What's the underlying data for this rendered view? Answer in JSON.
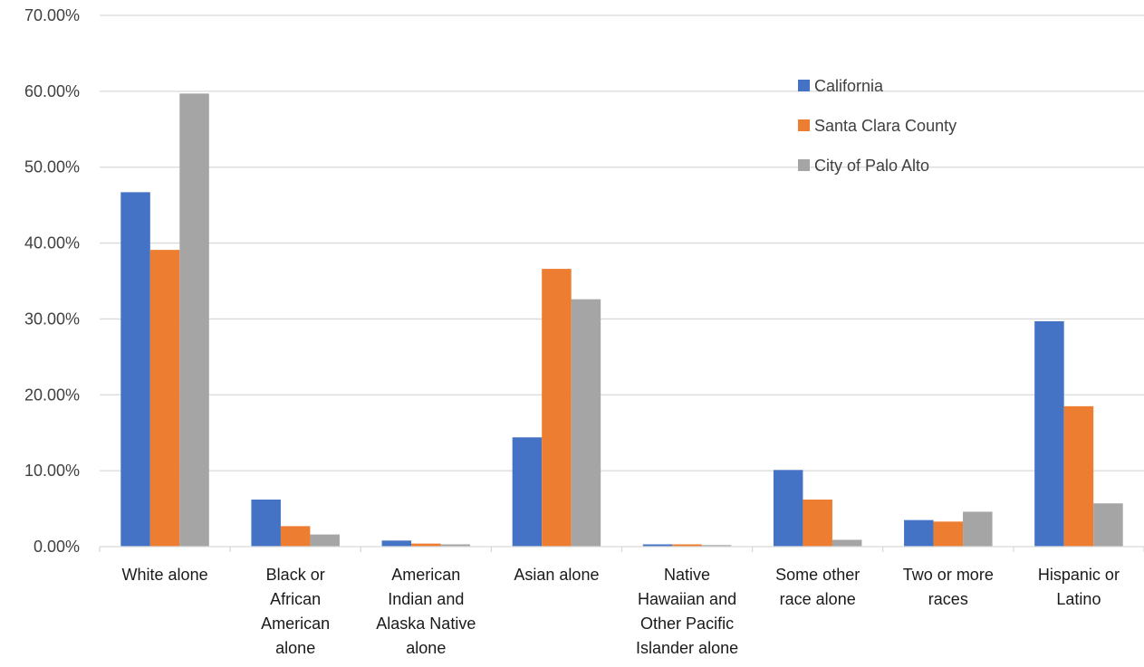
{
  "chart_data": {
    "type": "bar",
    "title": "",
    "xlabel": "",
    "ylabel": "",
    "ylim": [
      0,
      70
    ],
    "y_ticks": [
      "0.00%",
      "10.00%",
      "20.00%",
      "30.00%",
      "40.00%",
      "50.00%",
      "60.00%",
      "70.00%"
    ],
    "grid": true,
    "legend_position": "top-right",
    "categories": [
      [
        "White alone"
      ],
      [
        "Black or",
        "African",
        "American",
        "alone"
      ],
      [
        "American",
        "Indian and",
        "Alaska Native",
        "alone"
      ],
      [
        "Asian alone"
      ],
      [
        "Native",
        "Hawaiian and",
        "Other Pacific",
        "Islander alone"
      ],
      [
        "Some other",
        "race alone"
      ],
      [
        "Two or more",
        "races"
      ],
      [
        "Hispanic or",
        "Latino"
      ]
    ],
    "series": [
      {
        "name": "California",
        "color": "#4472C4",
        "values": [
          46.7,
          6.2,
          0.8,
          14.4,
          0.3,
          10.1,
          3.5,
          29.7
        ]
      },
      {
        "name": "Santa Clara County",
        "color": "#ED7D31",
        "values": [
          39.1,
          2.7,
          0.4,
          36.6,
          0.3,
          6.2,
          3.3,
          18.5
        ]
      },
      {
        "name": "City of Palo Alto",
        "color": "#A5A5A5",
        "values": [
          59.7,
          1.6,
          0.3,
          32.6,
          0.2,
          0.9,
          4.6,
          5.7
        ]
      }
    ]
  }
}
